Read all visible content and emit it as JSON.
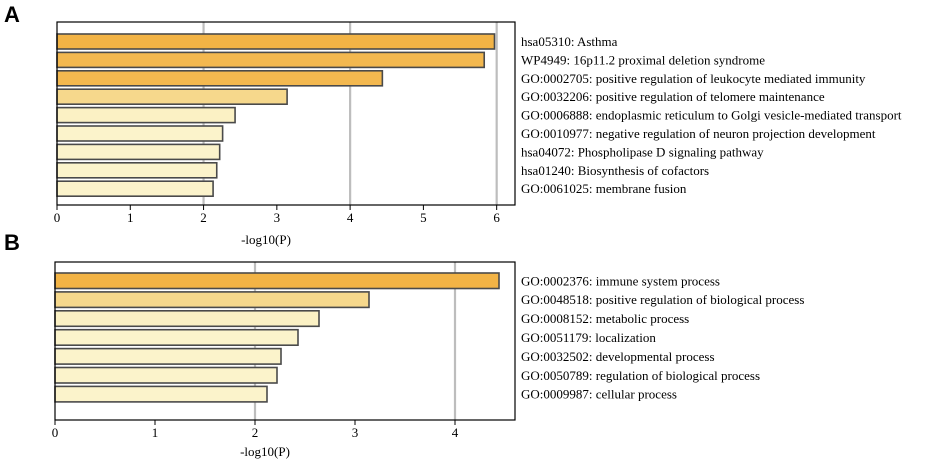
{
  "chart_data": [
    {
      "type": "bar",
      "orientation": "horizontal",
      "panel": "A",
      "xlabel": "-log10(P)",
      "xlim": [
        0,
        6.25
      ],
      "xticks": [
        0,
        1,
        2,
        3,
        4,
        5,
        6
      ],
      "gridlines": [
        2,
        4,
        6
      ],
      "categories": [
        "hsa05310: Asthma",
        "WP4949: 16p11.2 proximal deletion syndrome",
        "GO:0002705: positive regulation of leukocyte mediated immunity",
        "GO:0032206: positive regulation of telomere maintenance",
        "GO:0006888: endoplasmic reticulum to Golgi vesicle-mediated transport",
        "GO:0010977: negative regulation of neuron projection development",
        "hsa04072: Phospholipase D signaling pathway",
        "hsa01240: Biosynthesis of cofactors",
        "GO:0061025: membrane fusion"
      ],
      "values": [
        5.97,
        5.83,
        4.44,
        3.14,
        2.43,
        2.26,
        2.22,
        2.18,
        2.13
      ],
      "colors": [
        "#f2b345",
        "#f3b84f",
        "#f3b84f",
        "#f6d88c",
        "#fbf1c4",
        "#fbf3cb",
        "#fbf3cb",
        "#fbf3cb",
        "#fbf3cb"
      ]
    },
    {
      "type": "bar",
      "orientation": "horizontal",
      "panel": "B",
      "xlabel": "-log10(P)",
      "xlim": [
        0,
        4.6
      ],
      "xticks": [
        0,
        1,
        2,
        3,
        4
      ],
      "gridlines": [
        2,
        4
      ],
      "categories": [
        "GO:0002376: immune system process",
        "GO:0048518: positive regulation of biological process",
        "GO:0008152: metabolic process",
        "GO:0051179: localization",
        "GO:0032502: developmental process",
        "GO:0050789: regulation of biological process",
        "GO:0009987: cellular process"
      ],
      "values": [
        4.44,
        3.14,
        2.64,
        2.43,
        2.26,
        2.22,
        2.12
      ],
      "colors": [
        "#f2b345",
        "#f6d88c",
        "#fbf1c4",
        "#fbf3cb",
        "#fbf3cb",
        "#fbf3cb",
        "#fbf3cb"
      ]
    }
  ]
}
